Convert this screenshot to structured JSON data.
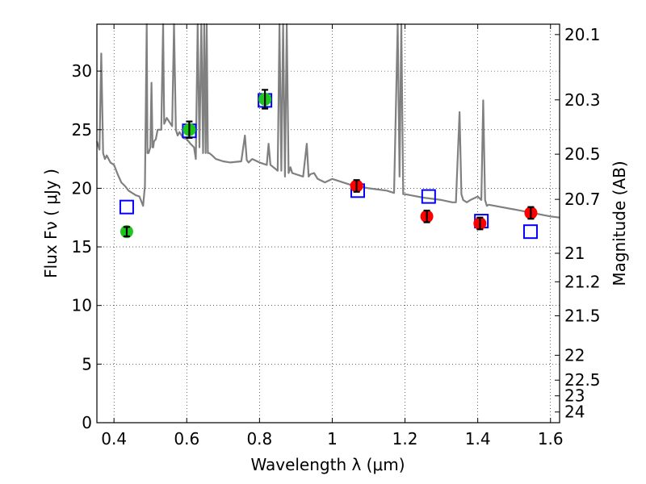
{
  "chart_data": {
    "type": "scatter",
    "xlabel": "Wavelength  λ (μm)",
    "ylabel": "Flux  Fν  ( μJy )",
    "y2label": "Magnitude (AB)",
    "xlim": [
      0.353,
      1.625
    ],
    "ylim": [
      0,
      34
    ],
    "grid": true,
    "x_ticks": [
      0.4,
      0.6,
      0.8,
      1.0,
      1.2,
      1.4,
      1.6
    ],
    "x_tick_labels": [
      "0.4",
      "0.6",
      "0.8",
      "1",
      "1.2",
      "1.4",
      "1.6"
    ],
    "y_ticks": [
      0,
      5,
      10,
      15,
      20,
      25,
      30
    ],
    "y_tick_labels": [
      "0",
      "5",
      "10",
      "15",
      "20",
      "25",
      "30"
    ],
    "y2_tick_labels": [
      "20.1",
      "20.3",
      "20.5",
      "20.7",
      "21",
      "21.2",
      "21.5",
      "22",
      "22.5",
      "23",
      "24"
    ],
    "colors": {
      "model": "#808080",
      "green": "#1ec71e",
      "red": "#ff0000",
      "square": "#0000ff",
      "errorbar": "#000000"
    },
    "series": [
      {
        "kind": "line",
        "x": [
          0.353,
          0.36,
          0.365,
          0.37,
          0.375,
          0.38,
          0.39,
          0.4,
          0.41,
          0.42,
          0.43,
          0.44,
          0.45,
          0.46,
          0.47,
          0.48,
          0.485,
          0.49,
          0.492,
          0.495,
          0.5,
          0.503,
          0.506,
          0.508,
          0.51,
          0.515,
          0.52,
          0.53,
          0.535,
          0.538,
          0.545,
          0.56,
          0.565,
          0.57,
          0.575,
          0.58,
          0.59,
          0.6,
          0.61,
          0.62,
          0.625,
          0.63,
          0.635,
          0.64,
          0.645,
          0.648,
          0.652,
          0.655,
          0.658,
          0.662,
          0.67,
          0.68,
          0.7,
          0.72,
          0.75,
          0.76,
          0.765,
          0.77,
          0.78,
          0.8,
          0.82,
          0.825,
          0.83,
          0.85,
          0.855,
          0.86,
          0.865,
          0.87,
          0.875,
          0.88,
          0.885,
          0.89,
          0.92,
          0.93,
          0.935,
          0.94,
          0.95,
          0.96,
          0.98,
          1.0,
          1.05,
          1.1,
          1.15,
          1.17,
          1.18,
          1.185,
          1.19,
          1.195,
          1.2,
          1.25,
          1.3,
          1.33,
          1.34,
          1.35,
          1.355,
          1.36,
          1.37,
          1.38,
          1.4,
          1.41,
          1.415,
          1.42,
          1.425,
          1.43,
          1.5,
          1.55,
          1.6,
          1.625
        ],
        "y": [
          24.0,
          23.3,
          31.5,
          23.0,
          22.5,
          22.8,
          22.2,
          22.0,
          21.2,
          20.5,
          20.2,
          19.8,
          19.6,
          19.4,
          19.3,
          18.5,
          20.2,
          34.0,
          23.0,
          23.0,
          23.5,
          29.0,
          23.5,
          23.5,
          24.0,
          24.2,
          25.0,
          25.0,
          34.0,
          25.5,
          26.0,
          25.3,
          34.0,
          25.0,
          24.5,
          24.8,
          24.3,
          24.2,
          23.8,
          23.5,
          22.5,
          34.0,
          23.5,
          34.0,
          23.0,
          34.0,
          23.0,
          34.0,
          23.0,
          23.0,
          22.8,
          22.5,
          22.3,
          22.2,
          22.3,
          24.5,
          22.4,
          22.2,
          22.5,
          22.2,
          22.0,
          23.8,
          22.0,
          21.5,
          34.0,
          21.5,
          34.0,
          21.0,
          34.0,
          21.3,
          21.8,
          21.3,
          21.0,
          23.8,
          21.0,
          21.2,
          21.3,
          20.8,
          20.5,
          20.8,
          20.3,
          20.0,
          19.8,
          19.6,
          34.0,
          21.0,
          34.0,
          19.5,
          19.5,
          19.2,
          19.0,
          18.8,
          18.8,
          26.5,
          19.5,
          19.0,
          18.8,
          19.0,
          19.3,
          19.0,
          27.5,
          19.0,
          18.5,
          18.6,
          18.2,
          17.9,
          17.6,
          17.5
        ]
      },
      {
        "kind": "squares",
        "x": [
          0.435,
          0.607,
          0.815,
          1.07,
          1.265,
          1.41,
          1.545
        ],
        "y": [
          18.4,
          24.9,
          27.5,
          19.8,
          19.3,
          17.2,
          16.3
        ]
      },
      {
        "kind": "points",
        "x": [
          0.435,
          0.607,
          0.815
        ],
        "y": [
          16.3,
          25.0,
          27.6
        ],
        "err": [
          0.4,
          0.7,
          0.8
        ],
        "color_key": "green"
      },
      {
        "kind": "points",
        "x": [
          1.067,
          1.26,
          1.406,
          1.546
        ],
        "y": [
          20.2,
          17.6,
          17.0,
          17.9
        ],
        "err": [
          0.5,
          0.5,
          0.5,
          0.5
        ],
        "color_key": "red"
      }
    ]
  }
}
